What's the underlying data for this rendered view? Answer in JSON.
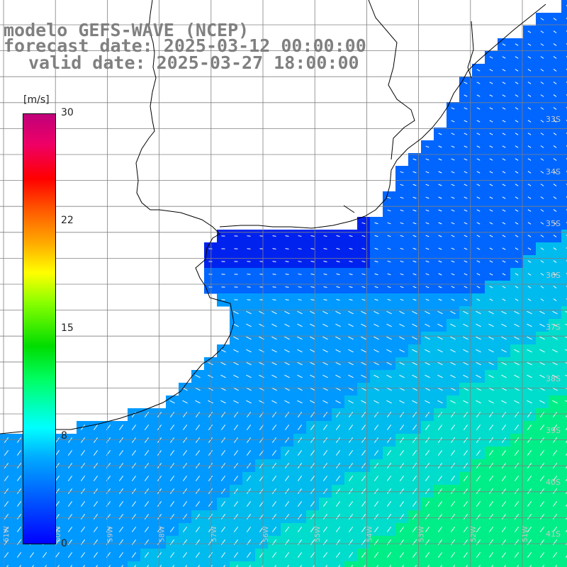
{
  "title": {
    "line1": "modelo GEFS-WAVE (NCEP)",
    "line2": "forecast date: 2025-03-12 00:00:00",
    "line3": "valid date: 2025-03-27 18:00:00"
  },
  "colorbar": {
    "unit": "[m/s]",
    "ticks": [
      "30",
      "22",
      "15",
      "8",
      "0"
    ],
    "colors": [
      "#0000ff",
      "#00aaff",
      "#00ffff",
      "#00dd00",
      "#ffff00",
      "#ff0000",
      "#c0007a"
    ]
  },
  "map": {
    "lat_labels": [
      "33S",
      "34S",
      "35S",
      "36S",
      "37S",
      "38S",
      "39S",
      "40S",
      "41S"
    ],
    "lon_labels": [
      "61W",
      "60W",
      "59W",
      "58W",
      "57W",
      "56W",
      "55W",
      "54W",
      "53W",
      "52W",
      "51W"
    ],
    "land_color": "#ffffff",
    "grid_color": "#808080",
    "coast_color": "#000000"
  }
}
